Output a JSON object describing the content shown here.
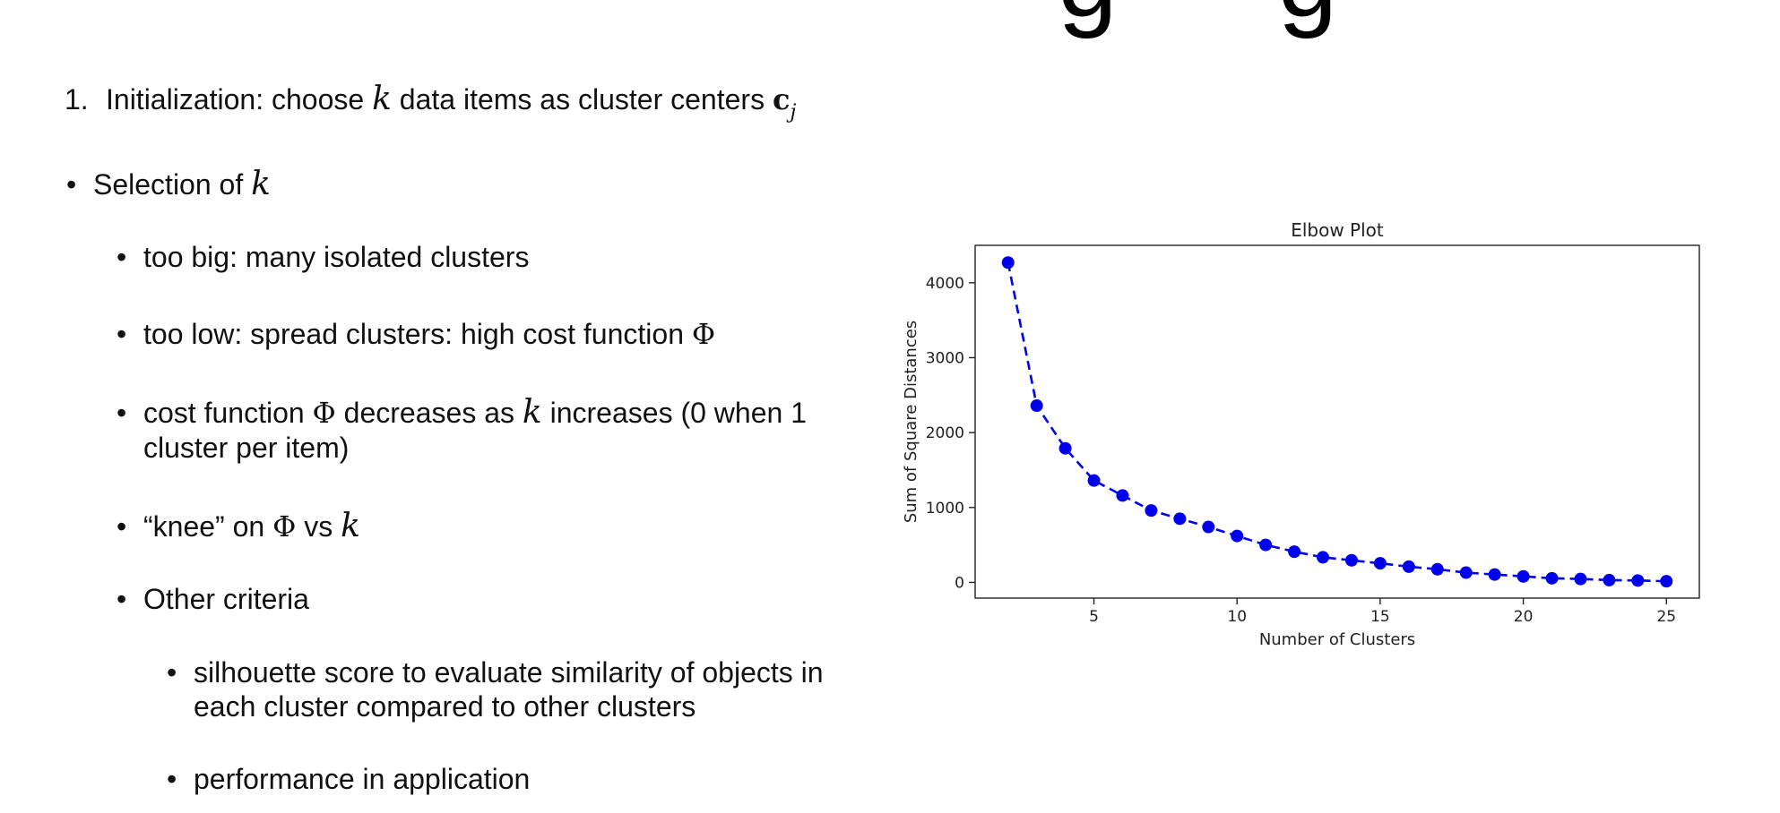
{
  "slide": {
    "items": [
      {
        "marker": "1.",
        "before": "Initialization: choose ",
        "var": "k",
        "after": " data items as cluster centers ",
        "bold": "c",
        "sub": "j"
      },
      {
        "marker": "•",
        "before": "Selection of ",
        "var": "k"
      },
      {
        "marker": "•",
        "text": "too big: many isolated clusters"
      },
      {
        "marker": "•",
        "before": "too low: spread clusters: high cost function ",
        "phi": "Φ"
      },
      {
        "marker": "•",
        "before": "cost function ",
        "phi": "Φ",
        "mid": " decreases as ",
        "var": "k",
        "after": " increases (0 when 1",
        "line2": "cluster per item)"
      },
      {
        "marker": "•",
        "before": "“knee” on ",
        "phi": "Φ",
        "mid": " vs ",
        "var": "k"
      },
      {
        "marker": "•",
        "text": "Other criteria"
      },
      {
        "marker": "•",
        "text": "silhouette score to evaluate similarity of objects in",
        "line2": "each cluster compared to other clusters"
      },
      {
        "marker": "•",
        "text": "performance in application"
      }
    ]
  },
  "chart_data": {
    "type": "line",
    "title": "Elbow Plot",
    "xlabel": "Number of Clusters",
    "ylabel": "Sum of Square Distances",
    "x": [
      2,
      3,
      4,
      5,
      6,
      7,
      8,
      9,
      10,
      11,
      12,
      13,
      14,
      15,
      16,
      17,
      18,
      19,
      20,
      21,
      22,
      23,
      24,
      25
    ],
    "series": [
      {
        "values": [
          4270,
          2360,
          1790,
          1360,
          1160,
          960,
          850,
          740,
          620,
          500,
          410,
          335,
          295,
          255,
          210,
          175,
          130,
          105,
          80,
          55,
          45,
          30,
          25,
          15
        ],
        "color": "#0000ee",
        "line_style": "dashed",
        "marker": "circle"
      }
    ],
    "xticks": [
      5,
      10,
      15,
      20,
      25
    ],
    "yticks": [
      0,
      1000,
      2000,
      3000,
      4000
    ],
    "xlim": [
      0.85,
      26.15
    ],
    "ylim": [
      -210,
      4500
    ],
    "grid": false
  }
}
